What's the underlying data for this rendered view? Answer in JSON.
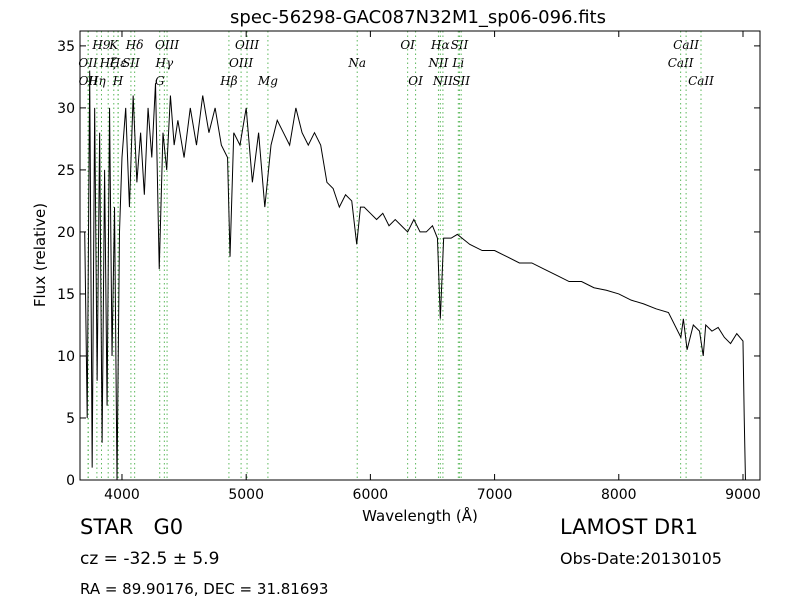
{
  "chart_data": {
    "type": "line",
    "title": "spec-56298-GAC087N32M1_sp06-096.fits",
    "x_label": "Wavelength (Å)",
    "y_label": "Flux (relative)",
    "class_label": "STAR   G0",
    "redshift_label": "cz = -32.5 ± 5.9",
    "coords_label": "RA = 89.90176, DEC = 31.81693",
    "survey_label": "LAMOST DR1",
    "date_label": "Obs-Date:20130105",
    "xlim": [
      3662,
      9137
    ],
    "ylim": [
      0,
      36.2
    ],
    "xticks": [
      4000,
      5000,
      6000,
      7000,
      8000,
      9000
    ],
    "yticks": [
      0,
      5,
      10,
      15,
      20,
      25,
      30,
      35
    ],
    "line_color": "#5cb85c",
    "lines": [
      {
        "label": "OII",
        "wavelength": 3727
      },
      {
        "label": "OII",
        "wavelength": 3729
      },
      {
        "label": "Hη",
        "wavelength": 3798
      },
      {
        "label": "H9",
        "wavelength": 3835
      },
      {
        "label": "Hζ",
        "wavelength": 3889
      },
      {
        "label": "K",
        "wavelength": 3934
      },
      {
        "label": "H",
        "wavelength": 3968
      },
      {
        "label": "Hε",
        "wavelength": 3970
      },
      {
        "label": "SII",
        "wavelength": 4072
      },
      {
        "label": "Hδ",
        "wavelength": 4102
      },
      {
        "label": "G",
        "wavelength": 4304
      },
      {
        "label": "Hγ",
        "wavelength": 4341
      },
      {
        "label": "OIII",
        "wavelength": 4363
      },
      {
        "label": "Hβ",
        "wavelength": 4861
      },
      {
        "label": "OIII",
        "wavelength": 4959
      },
      {
        "label": "OIII",
        "wavelength": 5007
      },
      {
        "label": "Mg",
        "wavelength": 5175
      },
      {
        "label": "Na",
        "wavelength": 5894
      },
      {
        "label": "OI",
        "wavelength": 6300
      },
      {
        "label": "OI",
        "wavelength": 6364
      },
      {
        "label": "NII",
        "wavelength": 6548
      },
      {
        "label": "Hα",
        "wavelength": 6563
      },
      {
        "label": "NII",
        "wavelength": 6584
      },
      {
        "label": "Li",
        "wavelength": 6708
      },
      {
        "label": "SII",
        "wavelength": 6717
      },
      {
        "label": "SII",
        "wavelength": 6731
      },
      {
        "label": "CaII",
        "wavelength": 8498
      },
      {
        "label": "CaII",
        "wavelength": 8542
      },
      {
        "label": "CaII",
        "wavelength": 8662
      }
    ],
    "series": [
      {
        "color": "#000000",
        "x": [
          3700,
          3720,
          3740,
          3760,
          3780,
          3800,
          3820,
          3840,
          3860,
          3880,
          3900,
          3920,
          3940,
          3960,
          3980,
          4000,
          4030,
          4060,
          4090,
          4120,
          4150,
          4180,
          4210,
          4240,
          4270,
          4300,
          4330,
          4360,
          4390,
          4420,
          4450,
          4500,
          4550,
          4600,
          4650,
          4700,
          4750,
          4800,
          4850,
          4870,
          4900,
          4950,
          5000,
          5050,
          5100,
          5150,
          5200,
          5250,
          5300,
          5350,
          5400,
          5450,
          5500,
          5550,
          5600,
          5650,
          5700,
          5750,
          5800,
          5850,
          5890,
          5920,
          5950,
          6000,
          6050,
          6100,
          6150,
          6200,
          6250,
          6300,
          6350,
          6400,
          6450,
          6500,
          6540,
          6563,
          6590,
          6650,
          6700,
          6800,
          6900,
          7000,
          7100,
          7200,
          7300,
          7400,
          7500,
          7600,
          7700,
          7800,
          7900,
          8000,
          8100,
          8200,
          8300,
          8400,
          8500,
          8520,
          8550,
          8600,
          8650,
          8680,
          8700,
          8750,
          8800,
          8850,
          8900,
          8950,
          9000,
          9010,
          9020
        ],
        "values": [
          20,
          5,
          33,
          1,
          30,
          8,
          28,
          3,
          25,
          6,
          30,
          10,
          22,
          0,
          20,
          26,
          30,
          22,
          31,
          24,
          28,
          23,
          30,
          26,
          32,
          17,
          28,
          25,
          31,
          27,
          29,
          26,
          30,
          27,
          31,
          28,
          30,
          27,
          26,
          18,
          28,
          27,
          30,
          24,
          28,
          22,
          27,
          29,
          28,
          27,
          30,
          28,
          27,
          28,
          27,
          24,
          23.5,
          22,
          23,
          22.5,
          19,
          22,
          22,
          21.5,
          21,
          21.5,
          20.5,
          21,
          20.5,
          20,
          21,
          20,
          20,
          20.5,
          19.5,
          13,
          19.5,
          19.5,
          19.8,
          19,
          18.5,
          18.5,
          18,
          17.5,
          17.5,
          17,
          16.5,
          16,
          16,
          15.5,
          15.3,
          15,
          14.5,
          14.2,
          13.8,
          13.5,
          11.5,
          13,
          10.5,
          12.5,
          12,
          10,
          12.5,
          12,
          12.3,
          11.5,
          11,
          11.8,
          11.2,
          5,
          0
        ]
      }
    ]
  }
}
